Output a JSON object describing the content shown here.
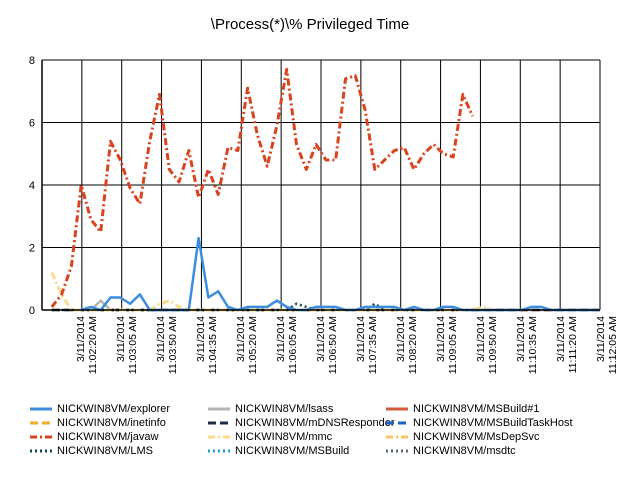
{
  "chart_data": {
    "type": "line",
    "title": "\\Process(*)\\% Privileged Time",
    "ylim": [
      0,
      8
    ],
    "yticks": [
      "0",
      "2",
      "4",
      "6",
      "8"
    ],
    "grid": true,
    "legend_position": "bottom",
    "x_tick_labels": [
      [
        "3/11/2014",
        "11:02:20 AM"
      ],
      [
        "3/11/2014",
        "11:03:05 AM"
      ],
      [
        "3/11/2014",
        "11:03:50 AM"
      ],
      [
        "3/11/2014",
        "11:04:35 AM"
      ],
      [
        "3/11/2014",
        "11:05:20 AM"
      ],
      [
        "3/11/2014",
        "11:06:05 AM"
      ],
      [
        "3/11/2014",
        "11:06:50 AM"
      ],
      [
        "3/11/2014",
        "11:07:35 AM"
      ],
      [
        "3/11/2014",
        "11:08:20 AM"
      ],
      [
        "3/11/2014",
        "11:09:05 AM"
      ],
      [
        "3/11/2014",
        "11:09:50 AM"
      ],
      [
        "3/11/2014",
        "11:10:35 AM"
      ],
      [
        "3/11/2014",
        "11:11:20 AM"
      ],
      [
        "3/11/2014",
        "11:12:05 AM"
      ]
    ],
    "series": [
      {
        "name": "NICKWIN8VM/explorer",
        "color": "#3c8ce0",
        "dash": "solid",
        "values": [
          null,
          null,
          null,
          null,
          0.0,
          0.1,
          0.0,
          0.4,
          0.4,
          0.2,
          0.5,
          0.0,
          0.0,
          0.0,
          0.0,
          0.0,
          2.3,
          0.4,
          0.6,
          0.1,
          0.0,
          0.1,
          0.1,
          0.1,
          0.3,
          0.1,
          0.0,
          0.0,
          0.1,
          0.1,
          0.1,
          0.0,
          0.0,
          0.1,
          0.1,
          0.1,
          0.1,
          0.0,
          0.1,
          0.0,
          0.0,
          0.1,
          0.1,
          0.0,
          0.0,
          0.0,
          0.0,
          0.0,
          0.0,
          0.0,
          0.1,
          0.1,
          0.0,
          0.0,
          0.0,
          0.0,
          0.0,
          0.0
        ]
      },
      {
        "name": "NICKWIN8VM/lsass",
        "color": "#b4b4b4",
        "dash": "solid",
        "values": [
          null,
          null,
          null,
          null,
          0.0,
          0.0,
          0.3,
          0.0,
          0.0,
          0.0,
          0.0,
          0.0,
          0.0,
          0.0,
          0.0,
          0.0,
          0.0,
          0.0,
          0.0,
          0.0,
          0.0,
          0.0,
          0.0,
          0.0,
          0.0,
          0.0,
          0.0,
          0.0,
          0.0,
          0.0,
          0.0,
          0.0,
          0.0,
          0.0,
          0.0,
          0.0,
          0.0,
          0.0,
          0.0,
          0.0,
          0.0,
          0.0,
          0.0,
          0.0,
          0.0,
          0.0,
          0.0,
          0.0,
          0.0,
          0.0,
          0.0,
          0.0,
          0.0,
          0.0,
          0.0,
          0.0,
          0.0,
          0.0
        ]
      },
      {
        "name": "NICKWIN8VM/MSBuild#1",
        "color": "#d55a3a",
        "dash": "solid",
        "values": []
      },
      {
        "name": "NICKWIN8VM/inetinfo",
        "color": "#f0a830",
        "dash": "dash",
        "values": [
          null,
          0.0,
          0.0,
          0.0,
          0.0,
          0.0,
          0.0,
          0.0,
          0.0,
          0.0,
          0.0,
          0.0,
          0.0,
          0.0,
          0.0,
          0.0,
          0.0,
          0.0,
          0.0,
          0.0,
          0.0,
          0.0,
          0.0,
          0.0,
          0.0,
          0.0,
          0.0,
          0.0,
          0.0,
          0.0,
          0.0,
          0.0,
          0.0,
          0.0,
          0.0,
          0.0,
          0.0,
          0.0,
          0.0,
          0.0,
          0.0,
          0.0,
          0.0,
          0.0,
          0.0,
          0.0,
          0.0,
          0.0,
          0.0,
          0.0,
          0.0,
          0.0,
          0.0,
          0.0,
          0.0,
          0.0,
          0.0,
          0.0
        ]
      },
      {
        "name": "NICKWIN8VM/mDNSResponder",
        "color": "#1c2c48",
        "dash": "dash",
        "values": [
          null,
          0.0,
          0.0,
          0.0,
          0.0,
          0.0,
          0.0,
          0.0,
          0.0,
          0.0,
          0.0,
          0.0,
          0.0,
          0.0,
          0.0,
          0.0,
          0.0,
          0.0,
          0.0,
          0.0,
          0.0,
          0.0,
          0.0,
          0.0,
          0.0,
          0.0,
          0.0,
          0.0,
          0.0,
          0.0,
          0.0,
          0.0,
          0.0,
          0.0,
          0.0,
          0.0,
          0.0,
          0.0,
          0.0,
          0.0,
          0.0,
          0.0,
          0.0,
          0.0,
          0.0,
          0.0,
          0.0,
          0.0,
          0.0,
          0.0,
          0.0,
          0.0,
          0.0,
          0.0,
          0.0,
          0.0,
          0.0,
          0.0
        ]
      },
      {
        "name": "NICKWIN8VM/MSBuildTaskHost",
        "color": "#1f5fc8",
        "dash": "dash",
        "values": []
      },
      {
        "name": "NICKWIN8VM/javaw",
        "color": "#d9431e",
        "dash": "dashdot",
        "values": [
          null,
          0.1,
          0.5,
          1.4,
          4.0,
          2.9,
          2.5,
          5.4,
          4.8,
          3.9,
          3.4,
          5.4,
          6.9,
          4.5,
          4.1,
          5.1,
          3.6,
          4.5,
          3.7,
          5.2,
          5.1,
          7.1,
          5.6,
          4.6,
          5.9,
          7.7,
          5.3,
          4.5,
          5.3,
          4.8,
          4.8,
          7.4,
          7.5,
          6.4,
          4.5,
          4.8,
          5.1,
          5.2,
          4.5,
          5.0,
          5.3,
          5.0,
          4.9,
          6.9,
          6.2
        ]
      },
      {
        "name": "NICKWIN8VM/mmc",
        "color": "#f7dc8c",
        "dash": "dashdot",
        "values": [
          null,
          1.2,
          0.5,
          0.0,
          0.0,
          0.0,
          0.0,
          0.0,
          0.0,
          0.0,
          0.0,
          0.0,
          0.2,
          0.3,
          0.1,
          0.0,
          0.0,
          0.0,
          0.0,
          0.0,
          0.0,
          0.0,
          0.0,
          0.0,
          0.0,
          0.0,
          0.0,
          0.0,
          0.0,
          0.0,
          0.0,
          0.0,
          0.0,
          0.0,
          0.0,
          0.0,
          0.0,
          0.0,
          0.0,
          0.0,
          0.0,
          0.0,
          0.0,
          0.0,
          0.0,
          0.1,
          0.0
        ]
      },
      {
        "name": "NICKWIN8VM/MsDepSvc",
        "color": "#f4c460",
        "dash": "dashdot",
        "values": []
      },
      {
        "name": "NICKWIN8VM/LMS",
        "color": "#0e4a54",
        "dash": "dot",
        "values": [
          null,
          0.0,
          0.0,
          0.0,
          0.0,
          0.0,
          0.0,
          0.0,
          0.0,
          0.0,
          0.0,
          0.0,
          0.0,
          0.0,
          0.0,
          0.0,
          0.0,
          0.0,
          0.0,
          0.0,
          0.0,
          0.0,
          0.0,
          0.0,
          0.0,
          0.0,
          0.2,
          0.1,
          0.0,
          0.0,
          0.0,
          0.0,
          0.0,
          0.0,
          0.2,
          0.0,
          0.0,
          0.0,
          0.0,
          0.0,
          0.0,
          0.0,
          0.0,
          0.0,
          0.0
        ]
      },
      {
        "name": "NICKWIN8VM/MSBuild",
        "color": "#1aa0d8",
        "dash": "dot",
        "values": []
      },
      {
        "name": "NICKWIN8VM/msdtc",
        "color": "#5a6878",
        "dash": "dot",
        "values": []
      }
    ]
  }
}
